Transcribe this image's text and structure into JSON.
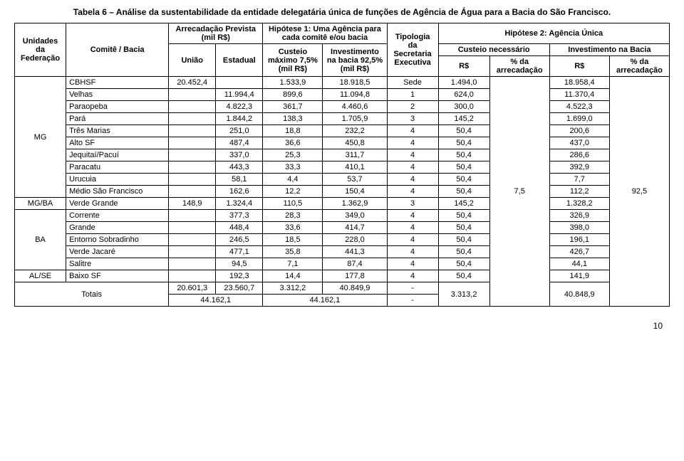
{
  "title": "Tabela 6 – Análise da sustentabilidade da entidade delegatária única de funções de Agência de Água para a Bacia do São Francisco.",
  "headers": {
    "uf": "Unidades da Federação",
    "comite": "Comitê / Bacia",
    "arrec": "Arrecadação Prevista (mil R$)",
    "uniao": "União",
    "estadual": "Estadual",
    "hip1": "Hipótese 1: Uma Agência para cada comitê e/ou bacia",
    "custeio": "Custeio máximo 7,5% (mil R$)",
    "invest": "Investimento na bacia 92,5% (mil R$)",
    "tip": "Tipologia da Secretaria Executiva",
    "hip2": "Hipótese 2: Agência Única",
    "custnec": "Custeio necessário",
    "invbacia": "Investimento na Bacia",
    "rs": "R$",
    "pctarrec": "% da arrecadação"
  },
  "rows": [
    {
      "comite": "CBHSF",
      "uniao": "20.452,4",
      "est": "",
      "cust": "1.533,9",
      "inv": "18.918,5",
      "tip": "Sede",
      "rs1": "1.494,0",
      "rs2": "18.958,4"
    },
    {
      "comite": "Velhas",
      "uniao": "",
      "est": "11.994,4",
      "cust": "899,6",
      "inv": "11.094,8",
      "tip": "1",
      "rs1": "624,0",
      "rs2": "11.370,4"
    },
    {
      "comite": "Paraopeba",
      "uniao": "",
      "est": "4.822,3",
      "cust": "361,7",
      "inv": "4.460,6",
      "tip": "2",
      "rs1": "300,0",
      "rs2": "4.522,3"
    },
    {
      "comite": "Pará",
      "uniao": "",
      "est": "1.844,2",
      "cust": "138,3",
      "inv": "1.705,9",
      "tip": "3",
      "rs1": "145,2",
      "rs2": "1.699,0"
    },
    {
      "comite": "Três Marias",
      "uniao": "",
      "est": "251,0",
      "cust": "18,8",
      "inv": "232,2",
      "tip": "4",
      "rs1": "50,4",
      "rs2": "200,6"
    },
    {
      "comite": "Alto SF",
      "uniao": "",
      "est": "487,4",
      "cust": "36,6",
      "inv": "450,8",
      "tip": "4",
      "rs1": "50,4",
      "rs2": "437,0"
    },
    {
      "comite": "Jequitaí/Pacuí",
      "uniao": "",
      "est": "337,0",
      "cust": "25,3",
      "inv": "311,7",
      "tip": "4",
      "rs1": "50,4",
      "rs2": "286,6"
    },
    {
      "comite": "Paracatu",
      "uniao": "",
      "est": "443,3",
      "cust": "33,3",
      "inv": "410,1",
      "tip": "4",
      "rs1": "50,4",
      "rs2": "392,9"
    },
    {
      "comite": "Urucuia",
      "uniao": "",
      "est": "58,1",
      "cust": "4,4",
      "inv": "53,7",
      "tip": "4",
      "rs1": "50,4",
      "rs2": "7,7"
    },
    {
      "comite": "Médio São Francisco",
      "uniao": "",
      "est": "162,6",
      "cust": "12,2",
      "inv": "150,4",
      "tip": "4",
      "rs1": "50,4",
      "rs2": "112,2"
    },
    {
      "comite": "Verde Grande",
      "uniao": "148,9",
      "est": "1.324,4",
      "cust": "110,5",
      "inv": "1.362,9",
      "tip": "3",
      "rs1": "145,2",
      "rs2": "1.328,2"
    },
    {
      "comite": "Corrente",
      "uniao": "",
      "est": "377,3",
      "cust": "28,3",
      "inv": "349,0",
      "tip": "4",
      "rs1": "50,4",
      "rs2": "326,9"
    },
    {
      "comite": "Grande",
      "uniao": "",
      "est": "448,4",
      "cust": "33,6",
      "inv": "414,7",
      "tip": "4",
      "rs1": "50,4",
      "rs2": "398,0"
    },
    {
      "comite": "Entorno Sobradinho",
      "uniao": "",
      "est": "246,5",
      "cust": "18,5",
      "inv": "228,0",
      "tip": "4",
      "rs1": "50,4",
      "rs2": "196,1"
    },
    {
      "comite": "Verde Jacaré",
      "uniao": "",
      "est": "477,1",
      "cust": "35,8",
      "inv": "441,3",
      "tip": "4",
      "rs1": "50,4",
      "rs2": "426,7"
    },
    {
      "comite": "Salitre",
      "uniao": "",
      "est": "94,5",
      "cust": "7,1",
      "inv": "87,4",
      "tip": "4",
      "rs1": "50,4",
      "rs2": "44,1"
    },
    {
      "comite": "Baixo SF",
      "uniao": "",
      "est": "192,3",
      "cust": "14,4",
      "inv": "177,8",
      "tip": "4",
      "rs1": "50,4",
      "rs2": "141,9"
    }
  ],
  "ufgroups": [
    {
      "label": "MG",
      "span": 10
    },
    {
      "label": "MG/BA",
      "span": 1
    },
    {
      "label": "BA",
      "span": 5
    },
    {
      "label": "AL/SE",
      "span": 1
    }
  ],
  "pct1": "7,5",
  "pct2": "92,5",
  "totais": {
    "label": "Totais",
    "uniao": "20.601,3",
    "est": "23.560,7",
    "cust": "3.312,2",
    "inv": "40.849,9",
    "tip": "-",
    "arrec_total": "44.162,1",
    "inv_total": "44.162,1",
    "tip2": "-",
    "rs1": "3.313,2",
    "rs2": "40.848,9"
  },
  "pagenum": "10"
}
